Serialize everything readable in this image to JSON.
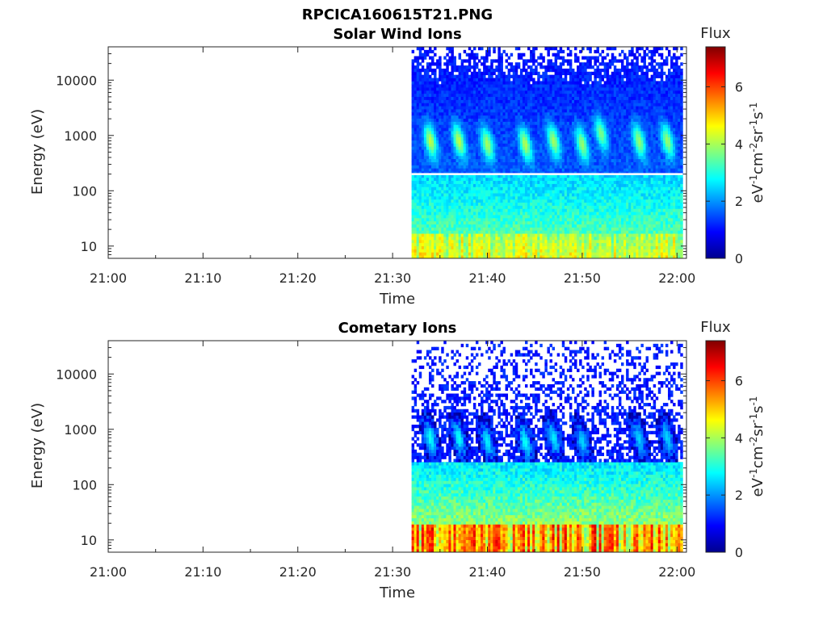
{
  "figure_title": "RPCICA160615T21.PNG",
  "chart_data": [
    {
      "type": "heatmap",
      "title": "Solar Wind Ions",
      "xlabel": "Time",
      "ylabel": "Energy (eV)",
      "y_scale": "log",
      "xlim": [
        "21:00",
        "22:01"
      ],
      "ylim": [
        6,
        40000
      ],
      "x_ticks": [
        "21:00",
        "21:10",
        "21:20",
        "21:30",
        "21:40",
        "21:50",
        "22:00"
      ],
      "y_ticks": [
        "10",
        "100",
        "1000",
        "10000"
      ],
      "colorbar": {
        "label": "Flux",
        "units": "eV-1cm-2sr-1s-1",
        "range": [
          0,
          7.4
        ],
        "ticks": [
          "0",
          "2",
          "4",
          "6"
        ],
        "colormap": "jet"
      },
      "data_start": "21:32",
      "data_end": "22:00",
      "features": [
        {
          "kind": "ion beam peak",
          "time": "21:34",
          "energy_eV": 800,
          "flux": 4.2
        },
        {
          "kind": "ion beam peak",
          "time": "21:37",
          "energy_eV": 800,
          "flux": 4.2
        },
        {
          "kind": "ion beam peak",
          "time": "21:40",
          "energy_eV": 700,
          "flux": 4.0
        },
        {
          "kind": "ion beam peak",
          "time": "21:44",
          "energy_eV": 700,
          "flux": 4.1
        },
        {
          "kind": "ion beam peak",
          "time": "21:47",
          "energy_eV": 800,
          "flux": 4.0
        },
        {
          "kind": "ion beam peak",
          "time": "21:50",
          "energy_eV": 700,
          "flux": 3.9
        },
        {
          "kind": "ion beam peak",
          "time": "21:52",
          "energy_eV": 1100,
          "flux": 3.7
        },
        {
          "kind": "ion beam peak",
          "time": "21:56",
          "energy_eV": 800,
          "flux": 3.9
        },
        {
          "kind": "ion beam peak",
          "time": "21:59",
          "energy_eV": 800,
          "flux": 3.9
        }
      ],
      "gap_line_energy_eV": 200,
      "low_energy_flux": {
        "time_series_energy_eV": 10,
        "typical": 3.6
      }
    },
    {
      "type": "heatmap",
      "title": "Cometary Ions",
      "xlabel": "Time",
      "ylabel": "Energy (eV)",
      "y_scale": "log",
      "xlim": [
        "21:00",
        "22:01"
      ],
      "ylim": [
        6,
        40000
      ],
      "x_ticks": [
        "21:00",
        "21:10",
        "21:20",
        "21:30",
        "21:40",
        "21:50",
        "22:00"
      ],
      "y_ticks": [
        "10",
        "100",
        "1000",
        "10000"
      ],
      "colorbar": {
        "label": "Flux",
        "units": "eV-1cm-2sr-1s-1",
        "range": [
          0,
          7.4
        ],
        "ticks": [
          "0",
          "2",
          "4",
          "6"
        ],
        "colormap": "jet"
      },
      "data_start": "21:32",
      "data_end": "22:00",
      "features": [
        {
          "kind": "ion beam peak",
          "time": "21:34",
          "energy_eV": 700,
          "flux": 2.9
        },
        {
          "kind": "ion beam peak",
          "time": "21:37",
          "energy_eV": 700,
          "flux": 2.9
        },
        {
          "kind": "ion beam peak",
          "time": "21:40",
          "energy_eV": 600,
          "flux": 2.7
        },
        {
          "kind": "ion beam peak",
          "time": "21:44",
          "energy_eV": 600,
          "flux": 2.9
        },
        {
          "kind": "ion beam peak",
          "time": "21:47",
          "energy_eV": 700,
          "flux": 2.7
        },
        {
          "kind": "ion beam peak",
          "time": "21:50",
          "energy_eV": 600,
          "flux": 2.5
        },
        {
          "kind": "ion beam peak",
          "time": "21:56",
          "energy_eV": 700,
          "flux": 2.5
        },
        {
          "kind": "ion beam peak",
          "time": "21:59",
          "energy_eV": 700,
          "flux": 2.5
        }
      ],
      "low_energy_flux": {
        "time_series_energy_eV": 10,
        "typical": 5.0,
        "max": 7.2
      }
    }
  ]
}
